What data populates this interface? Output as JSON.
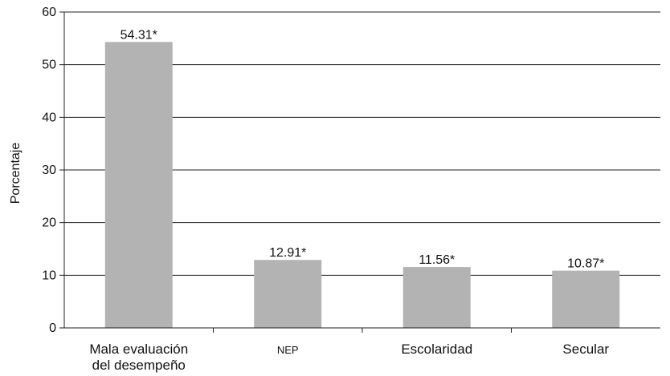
{
  "chart_data": {
    "type": "bar",
    "categories": [
      [
        "Mala evaluación",
        "del desempeño"
      ],
      [
        "NEP"
      ],
      [
        "Escolaridad"
      ],
      [
        "Secular"
      ]
    ],
    "values": [
      54.31,
      12.91,
      11.56,
      10.87
    ],
    "bar_labels": [
      "54.31*",
      "12.91*",
      "11.56*",
      "10.87*"
    ],
    "title": "",
    "xlabel": "",
    "ylabel": "Porcentaje",
    "ylim": [
      0,
      60
    ],
    "yticks": [
      "0",
      "10",
      "20",
      "30",
      "40",
      "50",
      "60"
    ],
    "grid": "horizontal",
    "legend": "none",
    "colors": {
      "bar": "#b3b3b3",
      "grid": "#222222",
      "axis": "#222222"
    }
  }
}
